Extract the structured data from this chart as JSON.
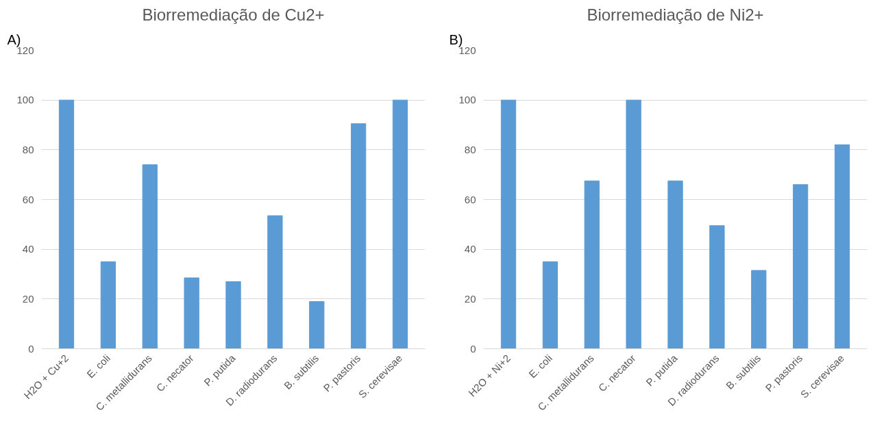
{
  "chart_data": [
    {
      "type": "bar",
      "title": "Biorremediação de Cu2+",
      "annotations": [
        "A)"
      ],
      "categories": [
        "H2O + Cu+2",
        "E. coli",
        "C. metallidurans",
        "C. necator",
        "P. putida",
        "D. radiodurans",
        "B. subtilis",
        "P. pastoris",
        "S. cerevisae"
      ],
      "values": [
        100,
        35,
        74,
        28.5,
        27,
        53.5,
        19,
        90.5,
        100
      ],
      "color": "#5b9bd5",
      "ylim": [
        0,
        120
      ],
      "yticks": [
        0,
        20,
        40,
        60,
        80,
        100,
        120
      ],
      "grid": "y"
    },
    {
      "type": "bar",
      "title": "Biorremediação de Ni2+",
      "annotations": [
        "B)"
      ],
      "categories": [
        "H2O + Ni+2",
        "E. coli",
        "C. metallidurans",
        "C. necator",
        "P. putida",
        "D. radiodurans",
        "B. subtilis",
        "P. pastoris",
        "S. cerevisae"
      ],
      "values": [
        100,
        35,
        67.5,
        100,
        67.5,
        49.5,
        31.5,
        66,
        82
      ],
      "color": "#5b9bd5",
      "ylim": [
        0,
        120
      ],
      "yticks": [
        0,
        20,
        40,
        60,
        80,
        100,
        120
      ],
      "grid": "y"
    }
  ]
}
